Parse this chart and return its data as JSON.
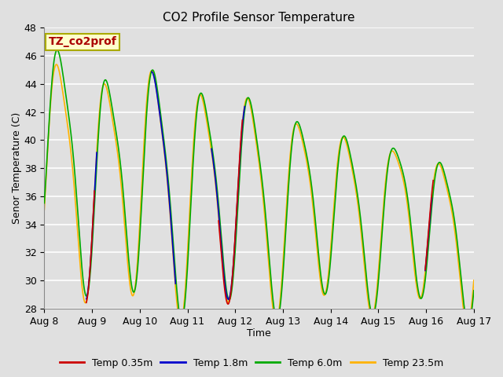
{
  "title": "CO2 Profile Sensor Temperature",
  "xlabel": "Time",
  "ylabel": "Senor Temperature (C)",
  "ylim": [
    28,
    48
  ],
  "yticks": [
    28,
    30,
    32,
    34,
    36,
    38,
    40,
    42,
    44,
    46,
    48
  ],
  "xtick_positions": [
    0,
    1,
    2,
    3,
    4,
    5,
    6,
    7,
    8,
    9
  ],
  "xtick_labels": [
    "Aug 8",
    "Aug 9",
    "Aug 10",
    "Aug 11",
    "Aug 12",
    "Aug 13",
    "Aug 14",
    "Aug 15",
    "Aug 16",
    "Aug 17"
  ],
  "annotation_text": "TZ_co2prof",
  "annotation_bbox_facecolor": "#FFFFCC",
  "annotation_bbox_edgecolor": "#AAAA00",
  "annotation_text_color": "#AA0000",
  "colors": {
    "Temp 0.35m": "#CC0000",
    "Temp 1.8m": "#0000CC",
    "Temp 6.0m": "#00AA00",
    "Temp 23.5m": "#FFB300"
  },
  "bg_color": "#E0E0E0",
  "grid_color": "#FFFFFF",
  "line_width": 1.2,
  "figsize": [
    6.4,
    4.8
  ],
  "dpi": 100
}
